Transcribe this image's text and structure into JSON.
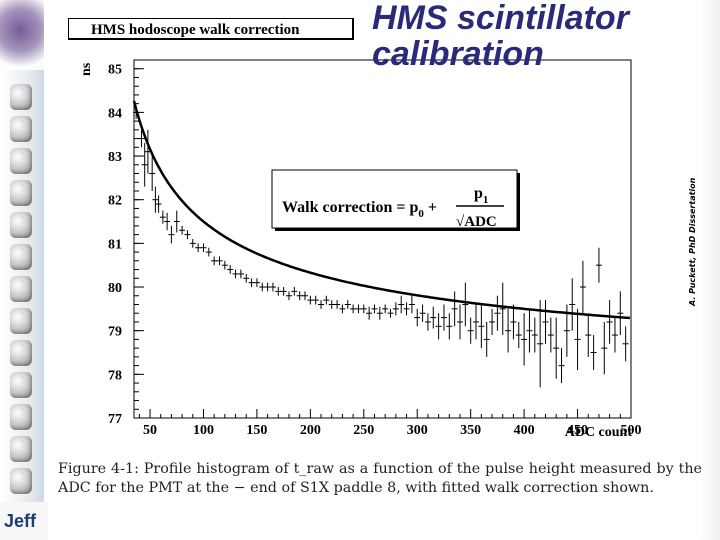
{
  "slide_title": {
    "line1": "HMS scintillator",
    "line2": "calibration"
  },
  "side_credit": "A. Puckett, PhD Dissertation",
  "logo_text": "Jeff",
  "figure_caption": "Figure 4-1: Profile histogram of t_raw as a function of the pulse height measured by the ADC for the PMT at the − end of S1X paddle 8, with fitted walk correction shown.",
  "chart_data": {
    "type": "scatter",
    "title": "HMS hodoscope walk correction",
    "xlabel": "ADC count",
    "ylabel": "ns",
    "xlim": [
      35,
      500
    ],
    "ylim": [
      77,
      85.2
    ],
    "xticks": [
      50,
      100,
      150,
      200,
      250,
      300,
      350,
      400,
      450,
      500
    ],
    "yticks": [
      77,
      78,
      79,
      80,
      81,
      82,
      83,
      84,
      85
    ],
    "grid": false,
    "legend": "none",
    "annotation": {
      "main": "Walk correction = p",
      "sub0": "0",
      "plus": " + ",
      "numer": "p",
      "sub1": "1",
      "denom": "√ADC"
    },
    "fit": {
      "p0": 77.5,
      "p1": 40.0,
      "x_from": 35,
      "x_to": 500
    },
    "points": [
      {
        "x": 37,
        "y": 84.0,
        "e": 0.15
      },
      {
        "x": 42,
        "y": 83.4,
        "e": 0.2
      },
      {
        "x": 45,
        "y": 82.8,
        "e": 0.5
      },
      {
        "x": 48,
        "y": 83.1,
        "e": 0.5
      },
      {
        "x": 52,
        "y": 82.6,
        "e": 0.4
      },
      {
        "x": 55,
        "y": 82.0,
        "e": 0.3
      },
      {
        "x": 58,
        "y": 81.9,
        "e": 0.2
      },
      {
        "x": 62,
        "y": 81.6,
        "e": 0.15
      },
      {
        "x": 66,
        "y": 81.5,
        "e": 0.2
      },
      {
        "x": 70,
        "y": 81.2,
        "e": 0.2
      },
      {
        "x": 75,
        "y": 81.5,
        "e": 0.25
      },
      {
        "x": 80,
        "y": 81.3,
        "e": 0.1
      },
      {
        "x": 85,
        "y": 81.2,
        "e": 0.1
      },
      {
        "x": 90,
        "y": 81.0,
        "e": 0.1
      },
      {
        "x": 95,
        "y": 80.9,
        "e": 0.1
      },
      {
        "x": 100,
        "y": 80.9,
        "e": 0.1
      },
      {
        "x": 105,
        "y": 80.8,
        "e": 0.1
      },
      {
        "x": 110,
        "y": 80.6,
        "e": 0.1
      },
      {
        "x": 115,
        "y": 80.6,
        "e": 0.1
      },
      {
        "x": 120,
        "y": 80.5,
        "e": 0.1
      },
      {
        "x": 125,
        "y": 80.4,
        "e": 0.1
      },
      {
        "x": 130,
        "y": 80.3,
        "e": 0.1
      },
      {
        "x": 135,
        "y": 80.3,
        "e": 0.1
      },
      {
        "x": 140,
        "y": 80.2,
        "e": 0.1
      },
      {
        "x": 145,
        "y": 80.1,
        "e": 0.1
      },
      {
        "x": 150,
        "y": 80.1,
        "e": 0.1
      },
      {
        "x": 155,
        "y": 80.0,
        "e": 0.1
      },
      {
        "x": 160,
        "y": 80.0,
        "e": 0.1
      },
      {
        "x": 165,
        "y": 80.0,
        "e": 0.1
      },
      {
        "x": 170,
        "y": 79.9,
        "e": 0.1
      },
      {
        "x": 175,
        "y": 79.9,
        "e": 0.1
      },
      {
        "x": 180,
        "y": 79.8,
        "e": 0.1
      },
      {
        "x": 185,
        "y": 79.9,
        "e": 0.1
      },
      {
        "x": 190,
        "y": 79.8,
        "e": 0.1
      },
      {
        "x": 195,
        "y": 79.8,
        "e": 0.1
      },
      {
        "x": 200,
        "y": 79.7,
        "e": 0.1
      },
      {
        "x": 205,
        "y": 79.7,
        "e": 0.1
      },
      {
        "x": 210,
        "y": 79.6,
        "e": 0.1
      },
      {
        "x": 215,
        "y": 79.7,
        "e": 0.1
      },
      {
        "x": 220,
        "y": 79.6,
        "e": 0.1
      },
      {
        "x": 225,
        "y": 79.6,
        "e": 0.1
      },
      {
        "x": 230,
        "y": 79.5,
        "e": 0.1
      },
      {
        "x": 235,
        "y": 79.6,
        "e": 0.1
      },
      {
        "x": 240,
        "y": 79.5,
        "e": 0.1
      },
      {
        "x": 245,
        "y": 79.5,
        "e": 0.1
      },
      {
        "x": 250,
        "y": 79.5,
        "e": 0.1
      },
      {
        "x": 255,
        "y": 79.4,
        "e": 0.15
      },
      {
        "x": 260,
        "y": 79.5,
        "e": 0.1
      },
      {
        "x": 265,
        "y": 79.4,
        "e": 0.15
      },
      {
        "x": 270,
        "y": 79.5,
        "e": 0.1
      },
      {
        "x": 275,
        "y": 79.4,
        "e": 0.1
      },
      {
        "x": 280,
        "y": 79.5,
        "e": 0.15
      },
      {
        "x": 285,
        "y": 79.6,
        "e": 0.2
      },
      {
        "x": 290,
        "y": 79.5,
        "e": 0.15
      },
      {
        "x": 295,
        "y": 79.6,
        "e": 0.2
      },
      {
        "x": 300,
        "y": 79.3,
        "e": 0.2
      },
      {
        "x": 305,
        "y": 79.4,
        "e": 0.2
      },
      {
        "x": 310,
        "y": 79.2,
        "e": 0.2
      },
      {
        "x": 315,
        "y": 79.3,
        "e": 0.25
      },
      {
        "x": 320,
        "y": 79.1,
        "e": 0.3
      },
      {
        "x": 325,
        "y": 79.3,
        "e": 0.3
      },
      {
        "x": 330,
        "y": 79.1,
        "e": 0.3
      },
      {
        "x": 335,
        "y": 79.5,
        "e": 0.4
      },
      {
        "x": 340,
        "y": 79.2,
        "e": 0.4
      },
      {
        "x": 345,
        "y": 79.6,
        "e": 0.5
      },
      {
        "x": 350,
        "y": 79.0,
        "e": 0.3
      },
      {
        "x": 355,
        "y": 79.2,
        "e": 0.4
      },
      {
        "x": 360,
        "y": 79.1,
        "e": 0.5
      },
      {
        "x": 365,
        "y": 78.8,
        "e": 0.4
      },
      {
        "x": 370,
        "y": 79.2,
        "e": 0.3
      },
      {
        "x": 375,
        "y": 79.4,
        "e": 0.4
      },
      {
        "x": 380,
        "y": 79.5,
        "e": 0.6
      },
      {
        "x": 385,
        "y": 79.0,
        "e": 0.5
      },
      {
        "x": 390,
        "y": 79.2,
        "e": 0.4
      },
      {
        "x": 395,
        "y": 78.9,
        "e": 0.3
      },
      {
        "x": 400,
        "y": 78.8,
        "e": 0.6
      },
      {
        "x": 405,
        "y": 79.0,
        "e": 0.5
      },
      {
        "x": 410,
        "y": 78.9,
        "e": 0.4
      },
      {
        "x": 415,
        "y": 78.7,
        "e": 1.0
      },
      {
        "x": 420,
        "y": 79.2,
        "e": 0.5
      },
      {
        "x": 425,
        "y": 78.9,
        "e": 0.4
      },
      {
        "x": 430,
        "y": 78.6,
        "e": 0.7
      },
      {
        "x": 435,
        "y": 78.2,
        "e": 0.4
      },
      {
        "x": 440,
        "y": 79.0,
        "e": 0.6
      },
      {
        "x": 445,
        "y": 79.6,
        "e": 0.6
      },
      {
        "x": 450,
        "y": 78.8,
        "e": 0.7
      },
      {
        "x": 455,
        "y": 80.0,
        "e": 0.6
      },
      {
        "x": 460,
        "y": 78.9,
        "e": 0.5
      },
      {
        "x": 465,
        "y": 78.5,
        "e": 0.4
      },
      {
        "x": 470,
        "y": 80.5,
        "e": 0.4
      },
      {
        "x": 475,
        "y": 78.6,
        "e": 0.6
      },
      {
        "x": 480,
        "y": 79.2,
        "e": 0.5
      },
      {
        "x": 485,
        "y": 78.9,
        "e": 0.4
      },
      {
        "x": 490,
        "y": 79.4,
        "e": 0.5
      },
      {
        "x": 495,
        "y": 78.7,
        "e": 0.4
      }
    ]
  }
}
